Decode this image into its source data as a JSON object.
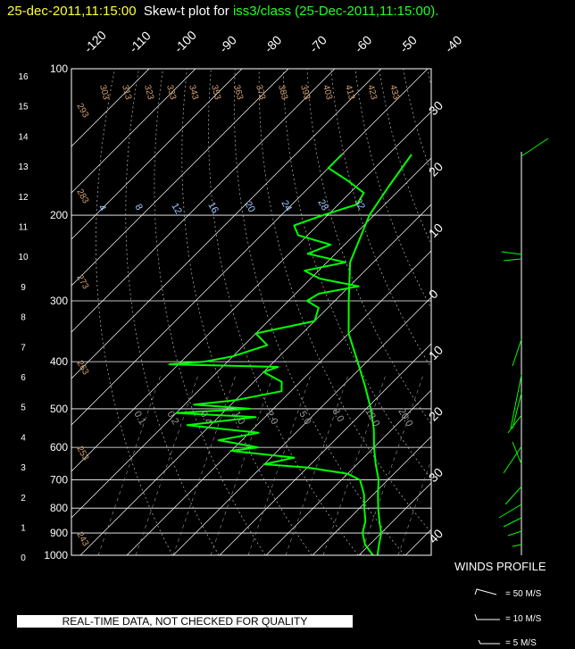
{
  "header": {
    "date_time": "25-dec-2011,11:15:00",
    "plot_label": "Skew-t plot for",
    "station": "iss3/class",
    "station_time": "(25-Dec-2011,11:15:00)."
  },
  "disclaimer": "REAL-TIME DATA, NOT CHECKED FOR QUALITY",
  "winds_profile": {
    "title": "WINDS PROFILE",
    "legend": [
      "= 50 M/S",
      "= 10 M/S",
      "= 5 M/S"
    ]
  },
  "colors": {
    "background": "#000000",
    "trace": "#00ff00",
    "grid": "#ffffff",
    "dry_adiabat_label": "#d2a070",
    "mixing_ratio_label": "#9fc7ff"
  },
  "chart_data": {
    "type": "line",
    "title": "Skew-t plot for iss3/class (25-Dec-2011,11:15:00).",
    "pressure_ticks": [
      100,
      200,
      300,
      400,
      500,
      600,
      700,
      800,
      900,
      1000
    ],
    "height_km_ticks": [
      "16",
      "15",
      "14",
      "13",
      "12",
      "11",
      "10",
      "9",
      "8",
      "7",
      "6",
      "5",
      "4",
      "3",
      "2",
      "1",
      "0"
    ],
    "temperature_ticks_top": [
      "-120",
      "-110",
      "-100",
      "-90",
      "-80",
      "-70",
      "-60",
      "-50",
      "-40"
    ],
    "temperature_ticks_right": [
      "30",
      "20",
      "10",
      "0",
      "10",
      "20",
      "30",
      "40"
    ],
    "dry_adiabat_labels": [
      "303",
      "313",
      "323",
      "333",
      "343",
      "353",
      "363",
      "373",
      "383",
      "393",
      "403",
      "413",
      "423",
      "433",
      "293",
      "283",
      "273",
      "263",
      "253",
      "243"
    ],
    "mixing_ratio_labels": [
      "4",
      "8",
      "12",
      "16",
      "20",
      "24",
      "28",
      "32"
    ],
    "lower_mixing_labels": [
      "0.1",
      "0.2",
      "0.4",
      "1.0",
      "2.0",
      "5.0",
      "8.0",
      "12.0",
      "20.0"
    ],
    "temperature_sounding": [
      [
        1000,
        14
      ],
      [
        950,
        12
      ],
      [
        900,
        10
      ],
      [
        850,
        7
      ],
      [
        800,
        4
      ],
      [
        750,
        1
      ],
      [
        700,
        -2
      ],
      [
        650,
        -6
      ],
      [
        600,
        -10
      ],
      [
        550,
        -14
      ],
      [
        500,
        -19
      ],
      [
        450,
        -25
      ],
      [
        400,
        -32
      ],
      [
        350,
        -40
      ],
      [
        300,
        -47
      ],
      [
        250,
        -55
      ],
      [
        200,
        -61
      ],
      [
        175,
        -63
      ],
      [
        150,
        -65
      ]
    ],
    "dewpoint_sounding": [
      [
        1000,
        13
      ],
      [
        950,
        9
      ],
      [
        900,
        6
      ],
      [
        850,
        4
      ],
      [
        800,
        1
      ],
      [
        750,
        -2
      ],
      [
        700,
        -6
      ],
      [
        680,
        -10
      ],
      [
        660,
        -20
      ],
      [
        650,
        -30
      ],
      [
        630,
        -25
      ],
      [
        610,
        -40
      ],
      [
        600,
        -35
      ],
      [
        580,
        -45
      ],
      [
        560,
        -38
      ],
      [
        540,
        -55
      ],
      [
        520,
        -42
      ],
      [
        510,
        -60
      ],
      [
        500,
        -45
      ],
      [
        490,
        -58
      ],
      [
        480,
        -50
      ],
      [
        460,
        -42
      ],
      [
        440,
        -44
      ],
      [
        420,
        -50
      ],
      [
        410,
        -48
      ],
      [
        405,
        -72
      ],
      [
        400,
        -65
      ],
      [
        390,
        -60
      ],
      [
        370,
        -55
      ],
      [
        350,
        -60
      ],
      [
        330,
        -50
      ],
      [
        310,
        -52
      ],
      [
        300,
        -56
      ],
      [
        290,
        -55
      ],
      [
        280,
        -48
      ],
      [
        270,
        -58
      ],
      [
        260,
        -63
      ],
      [
        250,
        -56
      ],
      [
        240,
        -66
      ],
      [
        230,
        -63
      ],
      [
        220,
        -72
      ],
      [
        210,
        -75
      ],
      [
        200,
        -71
      ],
      [
        190,
        -66
      ],
      [
        180,
        -67
      ],
      [
        170,
        -73
      ],
      [
        160,
        -80
      ],
      [
        150,
        -80
      ]
    ]
  }
}
